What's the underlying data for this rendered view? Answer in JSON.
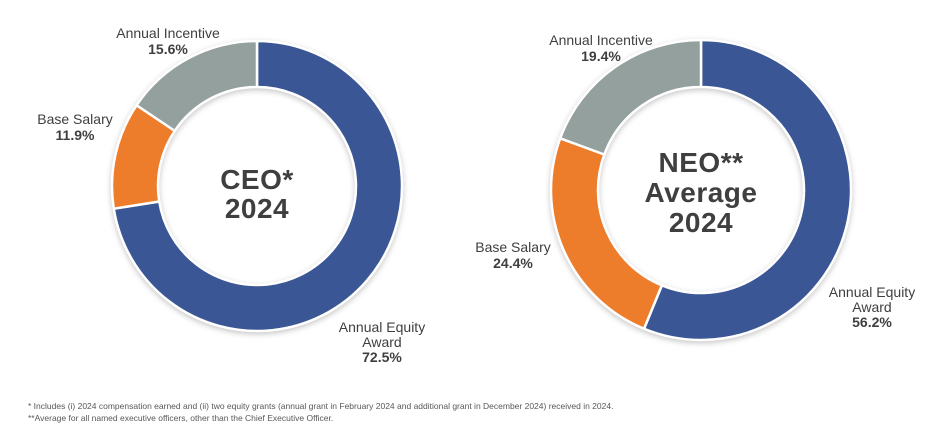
{
  "chart_data": [
    {
      "type": "pie",
      "variant": "donut",
      "title": "CEO* 2024",
      "title_lines": [
        "CEO*",
        "2024"
      ],
      "start_angle_deg": 0,
      "direction": "clockwise",
      "legend": "none",
      "slices": [
        {
          "label": "Annual Equity Award",
          "value": 72.5,
          "pct_label": "72.5%",
          "color": "#3A5694"
        },
        {
          "label": "Base Salary",
          "value": 11.9,
          "pct_label": "11.9%",
          "color": "#ED7C2B"
        },
        {
          "label": "Annual Incentive",
          "value": 15.6,
          "pct_label": "15.6%",
          "color": "#93A09D"
        }
      ]
    },
    {
      "type": "pie",
      "variant": "donut",
      "title": "NEO** Average 2024",
      "title_lines": [
        "NEO**",
        "Average",
        "2024"
      ],
      "start_angle_deg": 0,
      "direction": "clockwise",
      "legend": "none",
      "slices": [
        {
          "label": "Annual Equity Award",
          "value": 56.2,
          "pct_label": "56.2%",
          "color": "#3A5694"
        },
        {
          "label": "Base Salary",
          "value": 24.4,
          "pct_label": "24.4%",
          "color": "#ED7C2B"
        },
        {
          "label": "Annual Incentive",
          "value": 19.4,
          "pct_label": "19.4%",
          "color": "#93A09D"
        }
      ]
    }
  ],
  "footnotes": [
    "* Includes (i) 2024 compensation earned and (ii) two equity grants (annual grant in February 2024 and additional grant in December 2024) received in 2024.",
    "**Average for all named executive officers, other than the Chief Executive Officer."
  ]
}
